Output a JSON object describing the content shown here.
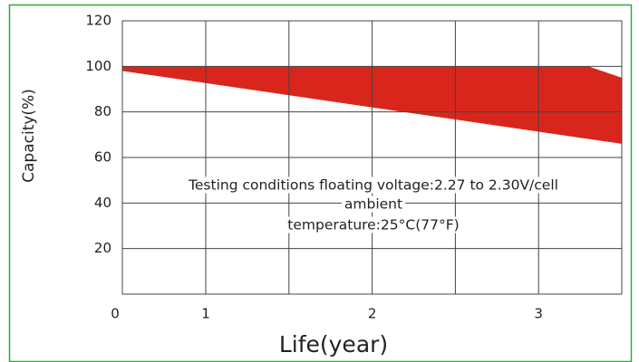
{
  "chart_data": {
    "type": "area_band",
    "ylabel": "Capacity(%)",
    "xlabel": "Life(year)",
    "annotations": [
      "Testing conditions floating voltage:2.27 to 2.30V/cell",
      "ambient",
      "temperature:25°C(77°F)"
    ],
    "upper": {
      "x": [
        0,
        3.3,
        3.5
      ],
      "values": [
        100,
        100,
        95
      ]
    },
    "lower": {
      "x": [
        0,
        3.5
      ],
      "values": [
        98,
        66
      ]
    },
    "color": "#d9261c",
    "xlim": [
      0,
      3.5
    ],
    "xticks": [
      0,
      1,
      2,
      3
    ],
    "xgrid": [
      1.5,
      2.5
    ],
    "ylim": [
      0,
      120
    ],
    "yticks": [
      20,
      40,
      60,
      80,
      100,
      120
    ],
    "grid": true
  }
}
